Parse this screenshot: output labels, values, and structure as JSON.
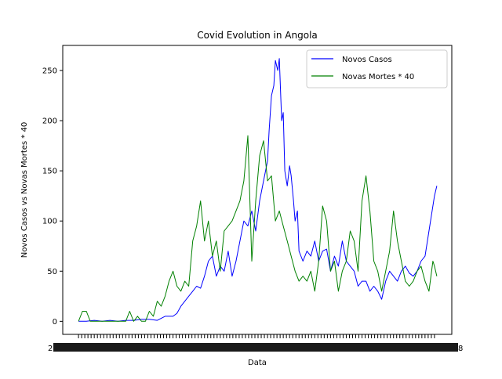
{
  "chart_data": {
    "type": "line",
    "title": "Covid Evolution in Angola",
    "xlabel": "Data",
    "ylabel": "Novos Casos vs Novas Mortes * 40",
    "ylim": [
      -13,
      275
    ],
    "y_ticks": [
      0,
      50,
      100,
      150,
      200,
      250
    ],
    "x_index_range": [
      -20,
      474
    ],
    "grid": false,
    "legend": "top-right",
    "x_tick_labels_note": "dense date tick labels rendered overlapping and illegible",
    "x_tick_left_fragment": "2",
    "x_tick_right_fragment": "8",
    "series": [
      {
        "name": "Novos Casos",
        "color": "#0000ff",
        "x": [
          0,
          10,
          20,
          30,
          40,
          50,
          60,
          70,
          80,
          90,
          100,
          110,
          120,
          125,
          130,
          135,
          140,
          145,
          150,
          155,
          160,
          165,
          170,
          175,
          180,
          185,
          190,
          195,
          200,
          205,
          210,
          215,
          220,
          225,
          230,
          235,
          240,
          242,
          245,
          248,
          250,
          253,
          255,
          258,
          260,
          262,
          265,
          268,
          270,
          273,
          275,
          278,
          280,
          285,
          290,
          295,
          300,
          305,
          310,
          315,
          320,
          325,
          330,
          335,
          340,
          345,
          350,
          355,
          360,
          365,
          370,
          375,
          380,
          385,
          390,
          395,
          400,
          405,
          410,
          415,
          420,
          425,
          430,
          435,
          440,
          445,
          449,
          452,
          455
        ],
        "y": [
          0,
          0,
          1,
          0,
          1,
          0,
          1,
          1,
          2,
          2,
          1,
          5,
          5,
          8,
          15,
          20,
          25,
          30,
          35,
          33,
          45,
          60,
          65,
          45,
          55,
          50,
          70,
          45,
          60,
          80,
          100,
          95,
          110,
          90,
          120,
          140,
          160,
          190,
          225,
          235,
          260,
          250,
          262,
          200,
          208,
          150,
          135,
          155,
          145,
          120,
          100,
          110,
          70,
          60,
          70,
          65,
          80,
          60,
          70,
          72,
          50,
          65,
          55,
          80,
          60,
          55,
          50,
          35,
          40,
          40,
          30,
          35,
          30,
          22,
          40,
          50,
          45,
          40,
          50,
          55,
          48,
          45,
          50,
          60,
          65,
          90,
          110,
          125,
          135
        ]
      },
      {
        "name": "Novas Mortes * 40",
        "color": "#008000",
        "x": [
          0,
          5,
          10,
          15,
          20,
          30,
          40,
          50,
          60,
          65,
          70,
          75,
          80,
          85,
          90,
          95,
          100,
          105,
          110,
          115,
          120,
          125,
          130,
          135,
          140,
          145,
          150,
          155,
          160,
          165,
          170,
          175,
          180,
          185,
          190,
          195,
          200,
          205,
          210,
          215,
          220,
          225,
          230,
          235,
          240,
          245,
          250,
          255,
          260,
          265,
          270,
          275,
          280,
          285,
          290,
          295,
          300,
          305,
          310,
          315,
          320,
          325,
          330,
          335,
          340,
          345,
          350,
          355,
          360,
          365,
          370,
          375,
          380,
          385,
          390,
          395,
          400,
          405,
          410,
          415,
          420,
          425,
          430,
          435,
          440,
          445,
          450,
          452,
          455
        ],
        "y": [
          0,
          10,
          10,
          0,
          0,
          0,
          0,
          0,
          0,
          10,
          0,
          5,
          0,
          0,
          10,
          5,
          20,
          15,
          25,
          40,
          50,
          35,
          30,
          40,
          35,
          80,
          95,
          120,
          80,
          100,
          65,
          80,
          50,
          90,
          95,
          100,
          110,
          120,
          140,
          185,
          60,
          120,
          165,
          180,
          140,
          145,
          100,
          110,
          95,
          80,
          65,
          50,
          40,
          45,
          40,
          50,
          30,
          60,
          115,
          100,
          50,
          60,
          30,
          50,
          60,
          90,
          80,
          50,
          120,
          145,
          110,
          60,
          50,
          30,
          50,
          70,
          110,
          80,
          60,
          40,
          35,
          40,
          50,
          55,
          40,
          30,
          60,
          55,
          45
        ]
      }
    ]
  }
}
